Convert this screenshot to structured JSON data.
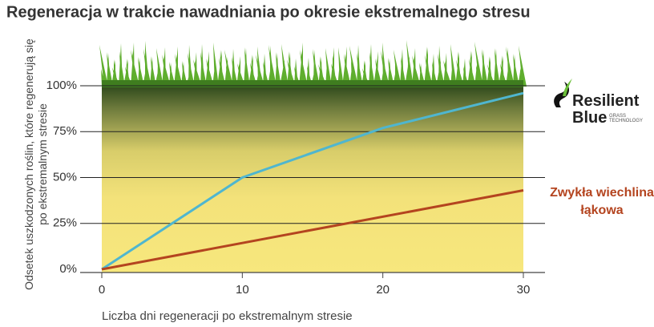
{
  "chart_data": {
    "type": "line",
    "title": "Regeneracja w trakcie nawadniania po okresie ekstremalnego stresu",
    "x_label": "Liczba dni regeneracji po ekstremalnym stresie",
    "y_label": "Odsetek uszkodzonych roślin, które regenerują się po ekstremalnym stresie",
    "xlim": [
      0,
      30
    ],
    "xticks": [
      0,
      10,
      20,
      30
    ],
    "ylim": [
      0,
      100
    ],
    "yticks": [
      {
        "value": 0,
        "label": "0%"
      },
      {
        "value": 25,
        "label": "25%"
      },
      {
        "value": 50,
        "label": "50%"
      },
      {
        "value": 75,
        "label": "75%"
      },
      {
        "value": 100,
        "label": "100%"
      }
    ],
    "grid": true,
    "legend_tagline": "GRASS TECHNOLOGY",
    "series": [
      {
        "name": "Resilient Blue",
        "color": "#4fb6cf",
        "x": [
          0,
          10,
          20,
          30
        ],
        "values": [
          0,
          50,
          77,
          96
        ]
      },
      {
        "name": "Zwykła wiechlina łąkowa",
        "color": "#b4441f",
        "x": [
          0,
          30
        ],
        "values": [
          0,
          43
        ]
      }
    ]
  }
}
